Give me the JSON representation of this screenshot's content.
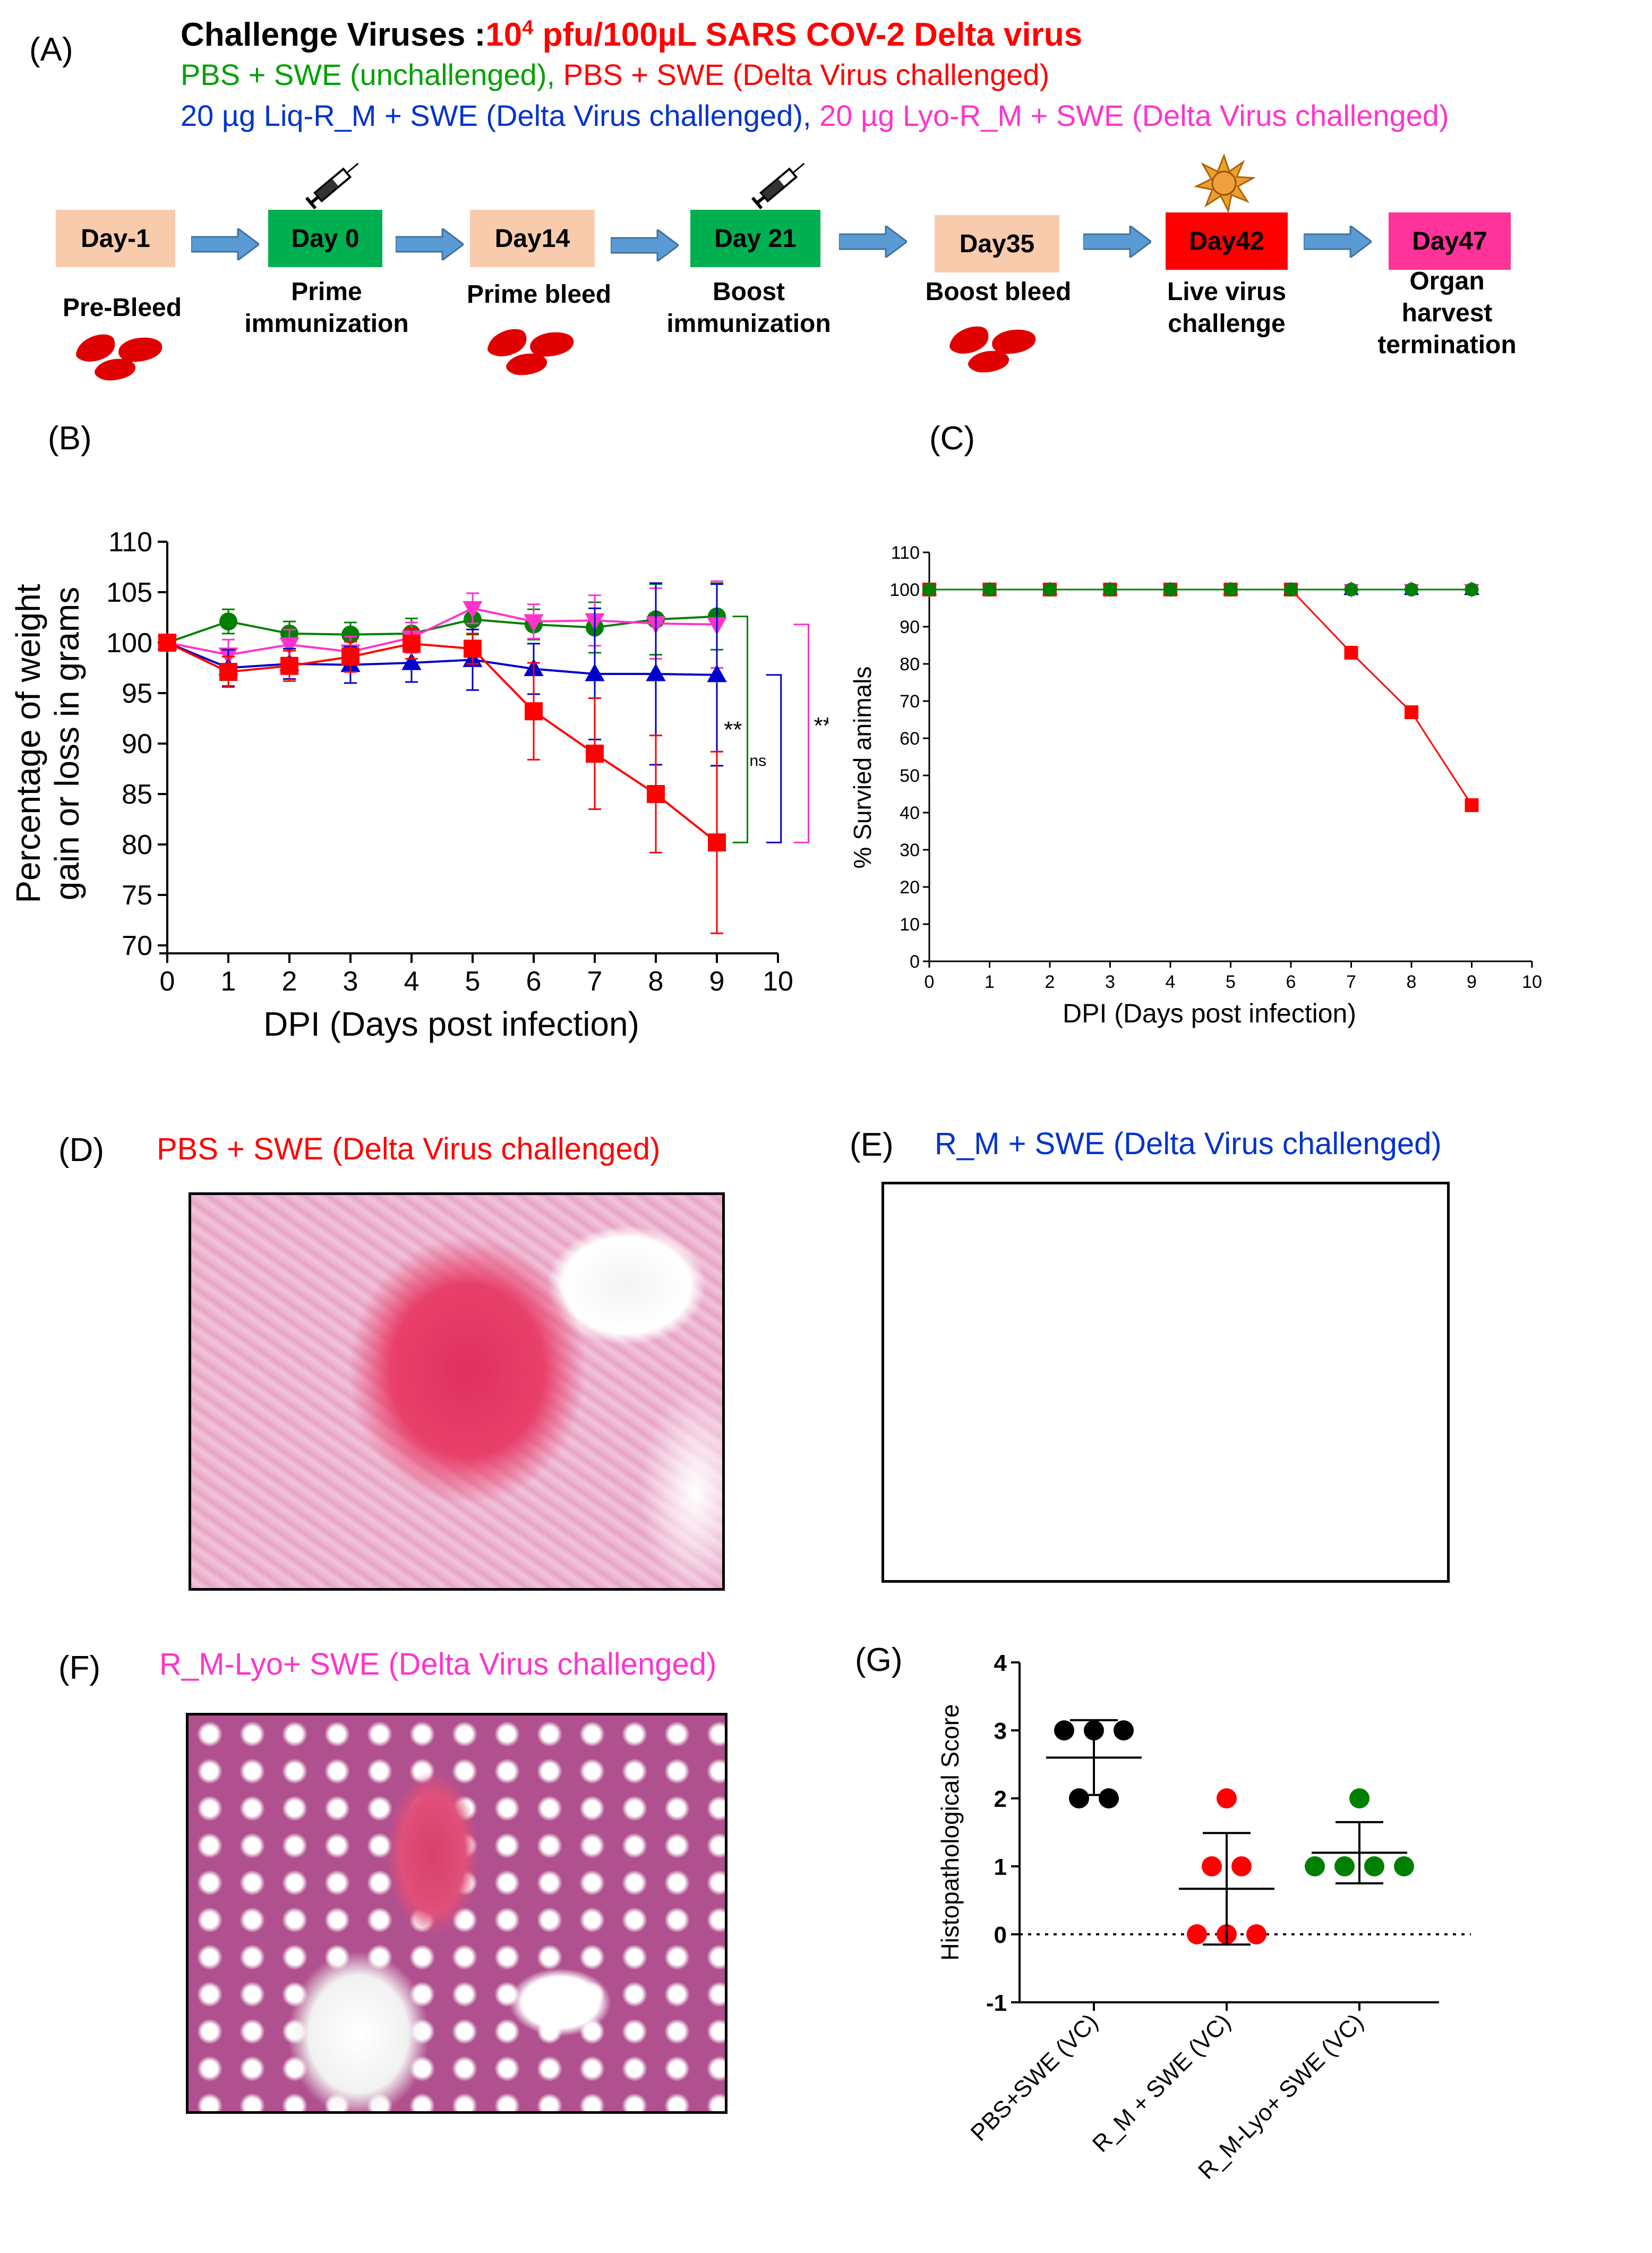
{
  "panel_labels": {
    "A": "(A)",
    "B": "(B)",
    "C": "(C)",
    "D": "(D)",
    "E": "(E)",
    "F": "(F)",
    "G": "(G)"
  },
  "header": {
    "challenge_label": "Challenge Viruses :",
    "challenge_dose": "10",
    "challenge_exp": "4",
    "challenge_rest": " pfu/100µL SARS COV-2 Delta virus",
    "green_line": "PBS + SWE (unchallenged), ",
    "red_line": "PBS + SWE (Delta Virus challenged)",
    "blue_line": "20 µg Liq-R_M + SWE (Delta Virus challenged), ",
    "magenta_line": "20 µg Lyo-R_M + SWE (Delta Virus challenged)"
  },
  "timeline": {
    "steps": [
      {
        "day": "Day-1",
        "caption": "Pre-Bleed",
        "color": "#F8CBAD",
        "icon": "blood-drops-icon"
      },
      {
        "day": "Day 0",
        "caption": "Prime\nimmunization",
        "color": "#00B050",
        "icon": "syringe-icon"
      },
      {
        "day": "Day14",
        "caption": "Prime bleed",
        "color": "#F8CBAD",
        "icon": "blood-drops-icon"
      },
      {
        "day": "Day 21",
        "caption": "Boost\nimmunization",
        "color": "#00B050",
        "icon": "syringe-icon"
      },
      {
        "day": "Day35",
        "caption": "Boost bleed",
        "color": "#F8CBAD",
        "icon": "blood-drops-icon"
      },
      {
        "day": "Day42",
        "caption": "Live virus\nchallenge",
        "color": "#FF0000",
        "icon": "virus-icon"
      },
      {
        "day": "Day47",
        "caption": "Organ\nharvest\ntermination",
        "color": "#FF3399",
        "icon": ""
      }
    ]
  },
  "micrographs": {
    "D": {
      "title": "PBS + SWE  (Delta Virus challenged)",
      "title_color": "#FF0000"
    },
    "E": {
      "title": "R_M + SWE  (Delta Virus challenged)",
      "title_color": "#0033CC"
    },
    "F": {
      "title": "R_M-Lyo+ SWE  (Delta Virus challenged)",
      "title_color": "#FF33CC"
    }
  },
  "chart_data": [
    {
      "panel": "B",
      "type": "line",
      "xlabel": "DPI (Days post infection)",
      "ylabel_line1": "Percentage of weight",
      "ylabel_line2": "gain or loss in grams",
      "xlim": [
        0,
        10
      ],
      "ylim": [
        70,
        110
      ],
      "x": [
        0,
        1,
        2,
        3,
        4,
        5,
        6,
        7,
        8,
        9
      ],
      "xticks": [
        0,
        1,
        2,
        3,
        4,
        5,
        6,
        7,
        8,
        9,
        10
      ],
      "yticks": [
        70,
        75,
        80,
        85,
        90,
        95,
        100,
        105,
        110
      ],
      "series": [
        {
          "color": "#008000",
          "marker": "circle",
          "values": [
            100,
            102.1,
            100.9,
            100.8,
            100.9,
            102.3,
            101.8,
            101.5,
            102.3,
            102.6
          ],
          "err": [
            0.3,
            1.2,
            1.2,
            1.2,
            1.5,
            1.5,
            1.5,
            2.5,
            3.5,
            3.3
          ]
        },
        {
          "color": "#FF33CC",
          "marker": "triangle-down",
          "values": [
            100,
            98.8,
            99.8,
            99.1,
            100.5,
            103.4,
            102.1,
            102.2,
            101.9,
            101.8
          ],
          "err": [
            0.3,
            1.5,
            1.5,
            1.5,
            1.5,
            1.5,
            1.7,
            2.5,
            3.5,
            4.3
          ]
        },
        {
          "color": "#0000CC",
          "marker": "triangle",
          "values": [
            100,
            97.5,
            97.9,
            97.8,
            98.0,
            98.3,
            97.4,
            96.9,
            96.9,
            96.8
          ],
          "err": [
            0.3,
            1.8,
            1.5,
            1.8,
            1.9,
            3.0,
            2.5,
            6.5,
            9.0,
            9.0
          ]
        },
        {
          "color": "#FF0000",
          "marker": "square",
          "values": [
            100,
            97.1,
            97.7,
            98.6,
            99.9,
            99.4,
            93.2,
            89.0,
            85.0,
            80.2
          ],
          "err": [
            0.3,
            1.5,
            1.5,
            1.5,
            1.5,
            1.5,
            4.8,
            5.5,
            5.8,
            9.0
          ]
        }
      ],
      "significance": [
        {
          "label": "**",
          "color": "#008000"
        },
        {
          "label": "ns",
          "color": "#0000CC"
        },
        {
          "label": "**",
          "color": "#FF33CC"
        }
      ]
    },
    {
      "panel": "C",
      "type": "line",
      "xlabel": "DPI (Days post infection)",
      "ylabel": "% Survied animals",
      "xlim": [
        0,
        10
      ],
      "ylim": [
        0,
        110
      ],
      "x": [
        0,
        1,
        2,
        3,
        4,
        5,
        6,
        7,
        8,
        9
      ],
      "xticks": [
        0,
        1,
        2,
        3,
        4,
        5,
        6,
        7,
        8,
        9,
        10
      ],
      "yticks": [
        0,
        10,
        20,
        30,
        40,
        50,
        60,
        70,
        80,
        90,
        100,
        110
      ],
      "series": [
        {
          "color": "#0000CC",
          "marker": "triangle",
          "values": [
            100,
            100,
            100,
            100,
            100,
            100,
            100,
            100,
            100,
            100
          ]
        },
        {
          "color": "#FF33CC",
          "marker": "triangle-down",
          "values": [
            100,
            100,
            100,
            100,
            100,
            100,
            100,
            100,
            100,
            100
          ]
        },
        {
          "color": "#FF0000",
          "marker": "square",
          "values": [
            100,
            100,
            100,
            100,
            100,
            100,
            100,
            83,
            67,
            42
          ]
        },
        {
          "color": "#008000",
          "marker": "circle",
          "values": [
            100,
            100,
            100,
            100,
            100,
            100,
            100,
            100,
            100,
            100
          ]
        }
      ]
    },
    {
      "panel": "G",
      "type": "scatter",
      "ylabel": "Histopathological Score",
      "ylim": [
        -1,
        4
      ],
      "yticks": [
        -1,
        0,
        1,
        2,
        3,
        4
      ],
      "categories": [
        "PBS+SWE (VC)",
        "R_M + SWE (VC)",
        "R_M-Lyo+ SWE (VC)"
      ],
      "groups": [
        {
          "color": "#000000",
          "points": [
            3,
            3,
            2,
            2,
            3
          ],
          "mean": 2.6,
          "sd": 0.55
        },
        {
          "color": "#FF0000",
          "points": [
            2,
            1,
            0,
            0,
            1,
            0
          ],
          "mean": 0.67,
          "sd": 0.82
        },
        {
          "color": "#008000",
          "points": [
            2,
            1,
            1,
            1,
            1
          ],
          "mean": 1.2,
          "sd": 0.45
        }
      ]
    }
  ]
}
